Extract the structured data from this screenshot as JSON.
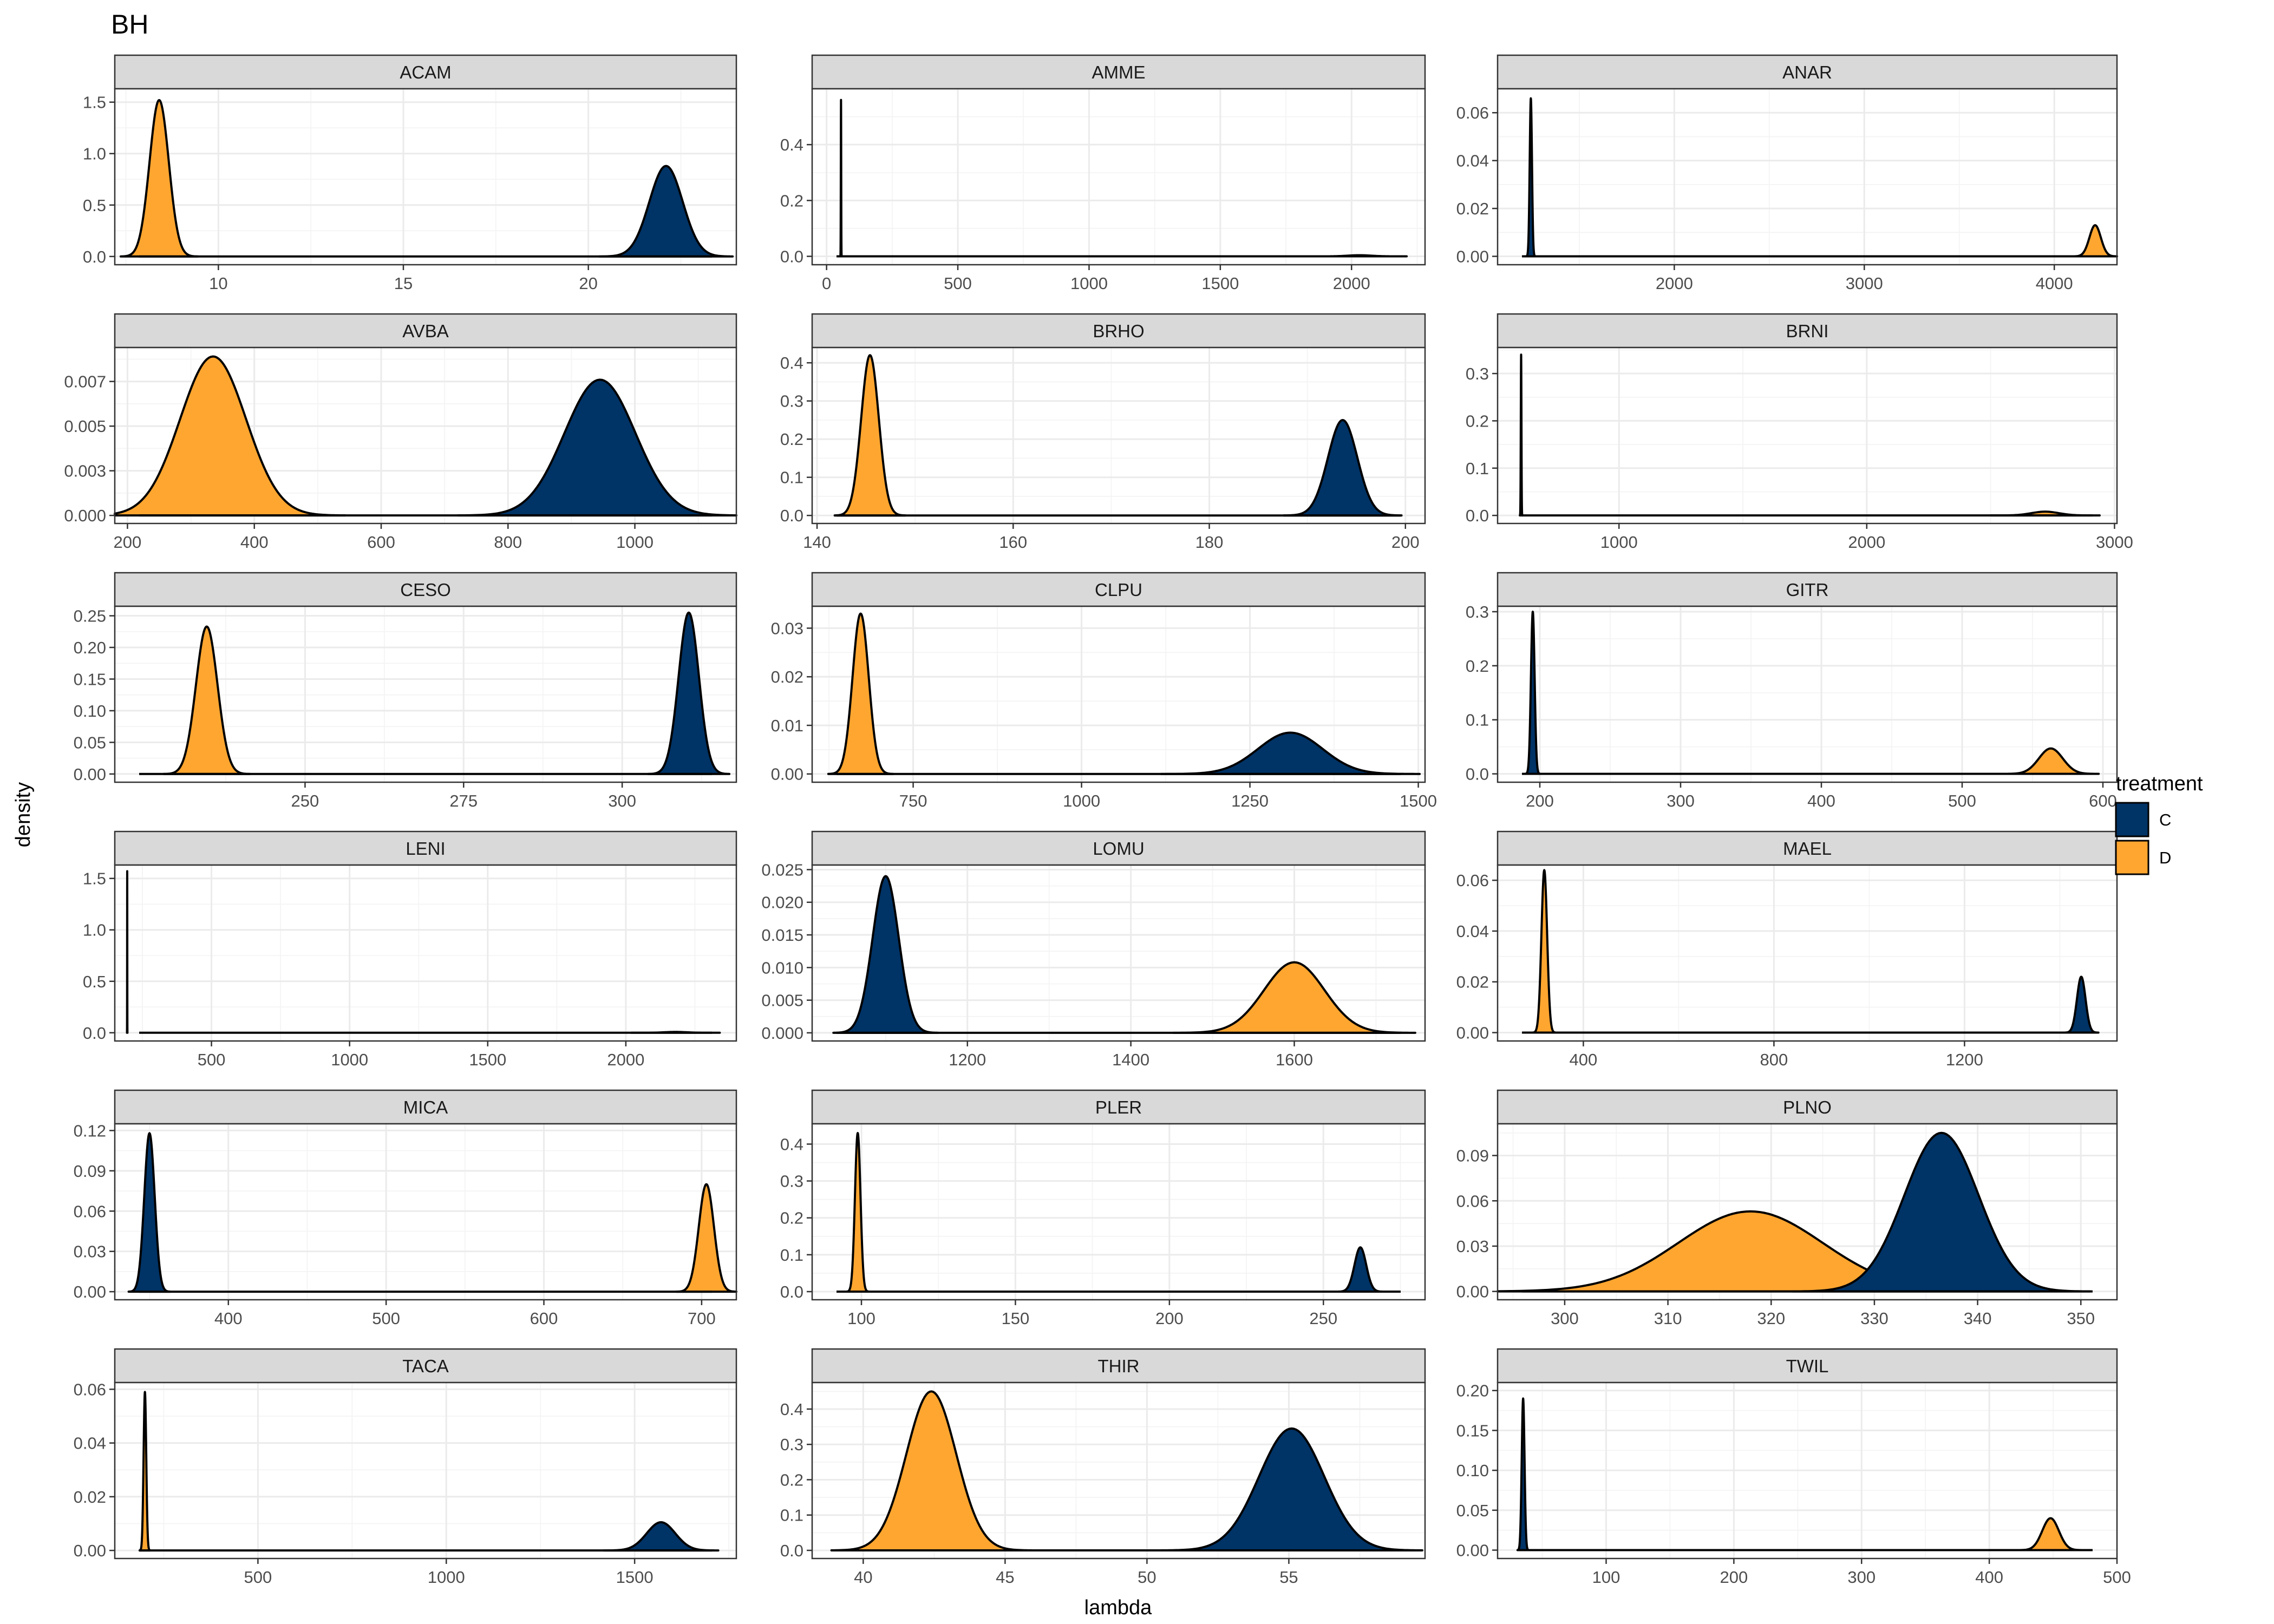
{
  "chart_data": {
    "type": "area",
    "title": "BH",
    "xlabel": "lambda",
    "ylabel": "density",
    "grid": true,
    "facet_layout": {
      "rows": 6,
      "cols": 3,
      "scales": "free"
    },
    "legend": {
      "title": "treatment",
      "placement": "right",
      "entries": [
        {
          "name": "C",
          "color": "#003366"
        },
        {
          "name": "D",
          "color": "#ffa630"
        }
      ]
    },
    "panels": [
      {
        "name": "ACAM",
        "xlim": [
          7.2,
          24.0
        ],
        "ylim": [
          -0.08,
          1.63
        ],
        "xticks": [
          10,
          15,
          20
        ],
        "yticks": [
          0.0,
          0.5,
          1.0,
          1.5
        ],
        "series": [
          {
            "name": "D",
            "mean": 8.4,
            "sd": 0.26,
            "peak": 1.52
          },
          {
            "name": "C",
            "mean": 22.1,
            "sd": 0.45,
            "peak": 0.88
          }
        ]
      },
      {
        "name": "AMME",
        "xlim": [
          -55,
          2280
        ],
        "ylim": [
          -0.03,
          0.6
        ],
        "xticks": [
          0,
          500,
          1000,
          1500,
          2000
        ],
        "yticks": [
          0.0,
          0.2,
          0.4
        ],
        "series": [
          {
            "name": "C",
            "mean": 55,
            "sd": 0.7,
            "peak": 0.56
          },
          {
            "name": "D",
            "mean": 2030,
            "sd": 45,
            "peak": 0.004
          }
        ]
      },
      {
        "name": "ANAR",
        "xlim": [
          1070,
          4330
        ],
        "ylim": [
          -0.0035,
          0.07
        ],
        "xticks": [
          2000,
          3000,
          4000
        ],
        "yticks": [
          0.0,
          0.02,
          0.04,
          0.06
        ],
        "series": [
          {
            "name": "C",
            "mean": 1245,
            "sd": 6,
            "peak": 0.066
          },
          {
            "name": "D",
            "mean": 4215,
            "sd": 30,
            "peak": 0.013
          }
        ]
      },
      {
        "name": "AVBA",
        "xlim": [
          180,
          1160
        ],
        "ylim": [
          -0.00045,
          0.0094
        ],
        "xticks": [
          200,
          400,
          600,
          800,
          1000
        ],
        "yticks": [
          0.0,
          0.0025,
          0.005,
          0.0075
        ],
        "series": [
          {
            "name": "D",
            "mean": 335,
            "sd": 52,
            "peak": 0.0089
          },
          {
            "name": "C",
            "mean": 945,
            "sd": 56,
            "peak": 0.0076
          }
        ]
      },
      {
        "name": "BRHO",
        "xlim": [
          139.5,
          202
        ],
        "ylim": [
          -0.021,
          0.44
        ],
        "xticks": [
          140,
          160,
          180,
          200
        ],
        "yticks": [
          0.0,
          0.1,
          0.2,
          0.3,
          0.4
        ],
        "series": [
          {
            "name": "D",
            "mean": 145.4,
            "sd": 0.9,
            "peak": 0.42
          },
          {
            "name": "C",
            "mean": 193.6,
            "sd": 1.5,
            "peak": 0.25
          }
        ]
      },
      {
        "name": "BRNI",
        "xlim": [
          510,
          3010
        ],
        "ylim": [
          -0.017,
          0.355
        ],
        "xticks": [
          1000,
          2000,
          3000
        ],
        "yticks": [
          0.0,
          0.1,
          0.2,
          0.3
        ],
        "series": [
          {
            "name": "C",
            "mean": 605,
            "sd": 1.3,
            "peak": 0.34
          },
          {
            "name": "D",
            "mean": 2720,
            "sd": 55,
            "peak": 0.008
          }
        ]
      },
      {
        "name": "CESO",
        "xlim": [
          220,
          318
        ],
        "ylim": [
          -0.013,
          0.265
        ],
        "xticks": [
          250,
          275,
          300
        ],
        "yticks": [
          0.0,
          0.05,
          0.1,
          0.15,
          0.2,
          0.25
        ],
        "series": [
          {
            "name": "D",
            "mean": 234.5,
            "sd": 1.7,
            "peak": 0.233
          },
          {
            "name": "C",
            "mean": 310.5,
            "sd": 1.6,
            "peak": 0.255
          }
        ]
      },
      {
        "name": "CLPU",
        "xlim": [
          600,
          1510
        ],
        "ylim": [
          -0.0017,
          0.0345
        ],
        "xticks": [
          750,
          1000,
          1250,
          1500
        ],
        "yticks": [
          0.0,
          0.01,
          0.02,
          0.03
        ],
        "series": [
          {
            "name": "D",
            "mean": 672,
            "sd": 12,
            "peak": 0.033
          },
          {
            "name": "C",
            "mean": 1310,
            "sd": 48,
            "peak": 0.0085
          }
        ]
      },
      {
        "name": "GITR",
        "xlim": [
          170,
          610
        ],
        "ylim": [
          -0.0155,
          0.31
        ],
        "xticks": [
          200,
          300,
          400,
          500,
          600
        ],
        "yticks": [
          0.0,
          0.1,
          0.2,
          0.3
        ],
        "series": [
          {
            "name": "C",
            "mean": 195,
            "sd": 1.3,
            "peak": 0.3
          },
          {
            "name": "D",
            "mean": 563,
            "sd": 8.5,
            "peak": 0.047
          }
        ]
      },
      {
        "name": "LENI",
        "xlim": [
          150,
          2400
        ],
        "ylim": [
          -0.08,
          1.63
        ],
        "xticks": [
          500,
          1000,
          1500,
          2000
        ],
        "yticks": [
          0.0,
          0.5,
          1.0,
          1.5
        ],
        "series": [
          {
            "name": "C",
            "mean": 195,
            "sd": 0.25,
            "peak": 1.57
          },
          {
            "name": "D",
            "mean": 2180,
            "sd": 40,
            "peak": 0.008
          }
        ]
      },
      {
        "name": "LOMU",
        "xlim": [
          1010,
          1760
        ],
        "ylim": [
          -0.00125,
          0.0257
        ],
        "xticks": [
          1200,
          1400,
          1600
        ],
        "yticks": [
          0.0,
          0.005,
          0.01,
          0.015,
          0.02,
          0.025
        ],
        "series": [
          {
            "name": "C",
            "mean": 1100,
            "sd": 16,
            "peak": 0.024
          },
          {
            "name": "D",
            "mean": 1600,
            "sd": 37,
            "peak": 0.0108
          }
        ]
      },
      {
        "name": "MAEL",
        "xlim": [
          220,
          1520
        ],
        "ylim": [
          -0.0033,
          0.066
        ],
        "xticks": [
          400,
          800,
          1200
        ],
        "yticks": [
          0.0,
          0.02,
          0.04,
          0.06
        ],
        "series": [
          {
            "name": "D",
            "mean": 318,
            "sd": 6,
            "peak": 0.064
          },
          {
            "name": "C",
            "mean": 1445,
            "sd": 9,
            "peak": 0.022
          }
        ]
      },
      {
        "name": "MICA",
        "xlim": [
          328,
          722
        ],
        "ylim": [
          -0.006,
          0.125
        ],
        "xticks": [
          400,
          500,
          600,
          700
        ],
        "yticks": [
          0.0,
          0.03,
          0.06,
          0.09,
          0.12
        ],
        "series": [
          {
            "name": "C",
            "mean": 350,
            "sd": 3.3,
            "peak": 0.118
          },
          {
            "name": "D",
            "mean": 703,
            "sd": 4.8,
            "peak": 0.08
          }
        ]
      },
      {
        "name": "PLER",
        "xlim": [
          84,
          283
        ],
        "ylim": [
          -0.022,
          0.455
        ],
        "xticks": [
          100,
          150,
          200,
          250
        ],
        "yticks": [
          0.0,
          0.1,
          0.2,
          0.3,
          0.4
        ],
        "series": [
          {
            "name": "D",
            "mean": 98.8,
            "sd": 0.9,
            "peak": 0.43
          },
          {
            "name": "C",
            "mean": 262,
            "sd": 1.9,
            "peak": 0.12
          }
        ]
      },
      {
        "name": "PLNO",
        "xlim": [
          293.5,
          353.5
        ],
        "ylim": [
          -0.0055,
          0.111
        ],
        "xticks": [
          300,
          310,
          320,
          330,
          340,
          350
        ],
        "yticks": [
          0.0,
          0.03,
          0.06,
          0.09
        ],
        "series": [
          {
            "name": "D",
            "mean": 318,
            "sd": 7,
            "peak": 0.053
          },
          {
            "name": "C",
            "mean": 336.5,
            "sd": 3.6,
            "peak": 0.105
          }
        ]
      },
      {
        "name": "TACA",
        "xlim": [
          120,
          1770
        ],
        "ylim": [
          -0.003,
          0.0625
        ],
        "xticks": [
          500,
          1000,
          1500
        ],
        "yticks": [
          0.0,
          0.02,
          0.04,
          0.06
        ],
        "series": [
          {
            "name": "D",
            "mean": 200,
            "sd": 3.5,
            "peak": 0.059
          },
          {
            "name": "C",
            "mean": 1570,
            "sd": 38,
            "peak": 0.0105
          }
        ]
      },
      {
        "name": "THIR",
        "xlim": [
          38.2,
          59.8
        ],
        "ylim": [
          -0.023,
          0.475
        ],
        "xticks": [
          40,
          45,
          50,
          55
        ],
        "yticks": [
          0.0,
          0.1,
          0.2,
          0.3,
          0.4
        ],
        "series": [
          {
            "name": "D",
            "mean": 42.4,
            "sd": 0.88,
            "peak": 0.45
          },
          {
            "name": "C",
            "mean": 55.1,
            "sd": 1.15,
            "peak": 0.345
          }
        ]
      },
      {
        "name": "TWIL",
        "xlim": [
          15,
          500
        ],
        "ylim": [
          -0.0105,
          0.21
        ],
        "xticks": [
          100,
          200,
          300,
          400,
          500
        ],
        "yticks": [
          0.0,
          0.05,
          0.1,
          0.15,
          0.2
        ],
        "series": [
          {
            "name": "C",
            "mean": 35,
            "sd": 1.1,
            "peak": 0.19
          },
          {
            "name": "D",
            "mean": 448,
            "sd": 6.5,
            "peak": 0.04
          }
        ]
      }
    ]
  }
}
